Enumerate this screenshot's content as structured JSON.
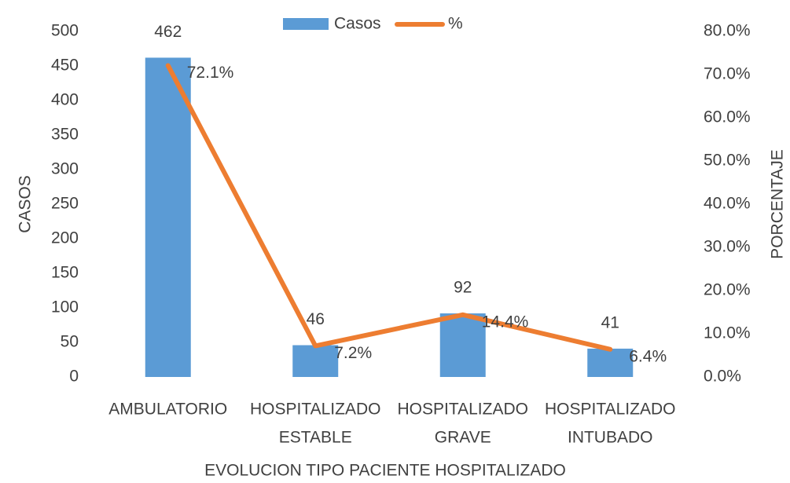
{
  "chart_data": {
    "type": "bar",
    "x_label": "EVOLUCION TIPO PACIENTE HOSPITALIZADO",
    "y_label": "CASOS",
    "y2_label": "PORCENTAJE",
    "categories": [
      [
        "AMBULATORIO"
      ],
      [
        "HOSPITALIZADO",
        "ESTABLE"
      ],
      [
        "HOSPITALIZADO",
        "GRAVE"
      ],
      [
        "HOSPITALIZADO",
        "INTUBADO"
      ]
    ],
    "series": [
      {
        "name": "Casos",
        "type": "bar",
        "color": "#5b9bd5",
        "values": [
          462,
          46,
          92,
          41
        ]
      },
      {
        "name": "%",
        "type": "line",
        "axis": "y2",
        "color": "#ed7d31",
        "values": [
          72.1,
          7.2,
          14.4,
          6.4
        ],
        "value_labels": [
          "72.1%",
          "7.2%",
          "14.4%",
          "6.4%"
        ]
      }
    ],
    "ylim": [
      0,
      500
    ],
    "yticks": [
      0,
      50,
      100,
      150,
      200,
      250,
      300,
      350,
      400,
      450,
      500
    ],
    "y2lim": [
      0,
      80
    ],
    "y2ticks": [
      {
        "value": 0,
        "label": "0.0%"
      },
      {
        "value": 10,
        "label": "10.0%"
      },
      {
        "value": 20,
        "label": "20.0%"
      },
      {
        "value": 30,
        "label": "30.0%"
      },
      {
        "value": 40,
        "label": "40.0%"
      },
      {
        "value": 50,
        "label": "50.0%"
      },
      {
        "value": 60,
        "label": "60.0%"
      },
      {
        "value": 70,
        "label": "70.0%"
      },
      {
        "value": 80,
        "label": "80.0%"
      }
    ],
    "legend": "top"
  }
}
